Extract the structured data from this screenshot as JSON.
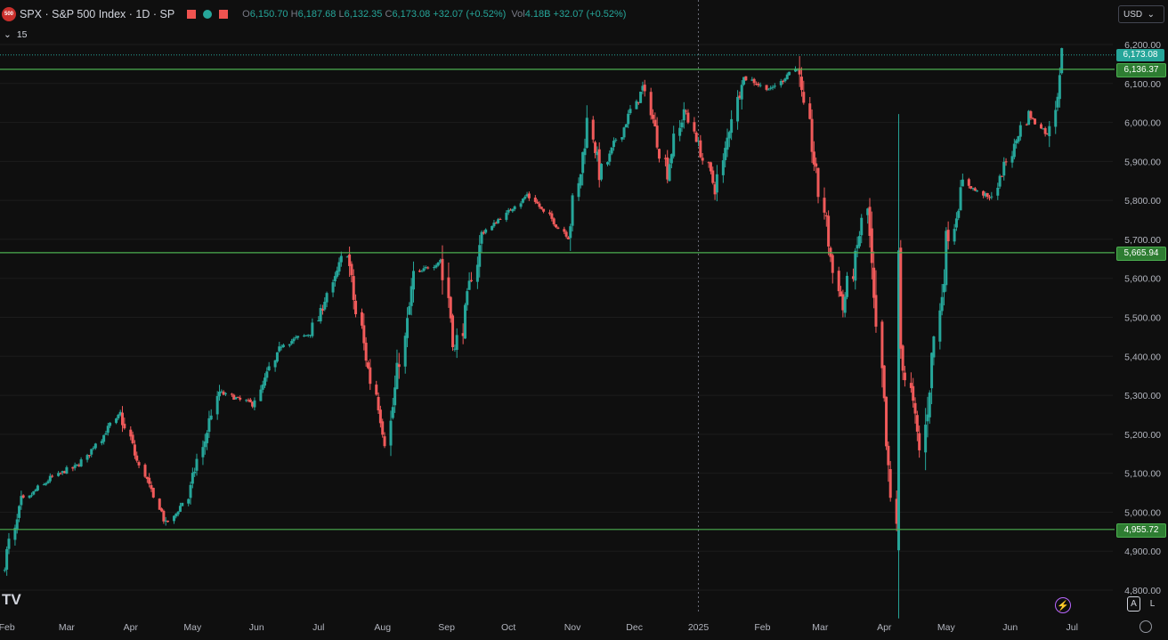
{
  "header": {
    "logo_text": "500",
    "symbol_title": "SPX · S&P 500 Index · 1D · SP",
    "open_label": "O",
    "open_value": "6,150.70",
    "high_label": "H",
    "high_value": "6,187.68",
    "low_label": "L",
    "low_value": "6,132.35",
    "close_label": "C",
    "close_value": "6,173.08",
    "change": "+32.07 (+0.52%)",
    "vol_label": "Vol",
    "vol_value": "4.18B",
    "vol_change": "+32.07 (+0.52%)",
    "flag_colors": [
      "#ef5350",
      "#26a69a",
      "#ef5350"
    ]
  },
  "subbar": {
    "toggle_icon": "chevron-down-icon",
    "count": "15"
  },
  "currency": "USD",
  "watermark": "TV",
  "buttons": {
    "auto": "A",
    "log": "L"
  },
  "colors": {
    "up": "#26a69a",
    "down": "#f05a5a",
    "level_line": "#4caf50",
    "level_badge": "#2e7d32",
    "last_price_badge": "#26a69a",
    "background": "#0f0f0f"
  },
  "chart_data": {
    "type": "candlestick",
    "ylim": [
      4800,
      6230
    ],
    "y_ticks": [
      4800,
      4900,
      5000,
      5100,
      5200,
      5300,
      5400,
      5500,
      5600,
      5700,
      5800,
      5900,
      6000,
      6100,
      6200
    ],
    "y_tick_labels": [
      "4,800.00",
      "4,900.00",
      "5,000.00",
      "5,100.00",
      "5,200.00",
      "5,300.00",
      "5,400.00",
      "5,500.00",
      "5,600.00",
      "5,700.00",
      "5,800.00",
      "5,900.00",
      "6,000.00",
      "6,100.00",
      "6,200.00"
    ],
    "x_labels": [
      "Feb",
      "Mar",
      "Apr",
      "May",
      "Jun",
      "Jul",
      "Aug",
      "Sep",
      "Oct",
      "Nov",
      "Dec",
      "2025",
      "Feb",
      "Mar",
      "Apr",
      "May",
      "Jun",
      "Jul"
    ],
    "last_price": 6173.08,
    "last_price_label": "6,173.08",
    "horizontal_levels": [
      {
        "value": 6136.37,
        "label": "6,136.37"
      },
      {
        "value": 5665.94,
        "label": "5,665.94"
      },
      {
        "value": 4955.72,
        "label": "4,955.72"
      }
    ],
    "approx_close_path": [
      [
        "2024-01-31",
        4845
      ],
      [
        "2024-02-09",
        5026
      ],
      [
        "2024-02-23",
        5088
      ],
      [
        "2024-03-08",
        5123
      ],
      [
        "2024-03-28",
        5254
      ],
      [
        "2024-04-04",
        5147
      ],
      [
        "2024-04-19",
        4967
      ],
      [
        "2024-04-30",
        5035
      ],
      [
        "2024-05-15",
        5308
      ],
      [
        "2024-05-31",
        5277
      ],
      [
        "2024-06-14",
        5431
      ],
      [
        "2024-06-28",
        5460
      ],
      [
        "2024-07-16",
        5667
      ],
      [
        "2024-07-24",
        5427
      ],
      [
        "2024-08-05",
        5186
      ],
      [
        "2024-08-19",
        5608
      ],
      [
        "2024-08-30",
        5648
      ],
      [
        "2024-09-06",
        5408
      ],
      [
        "2024-09-19",
        5713
      ],
      [
        "2024-10-11",
        5815
      ],
      [
        "2024-10-31",
        5705
      ],
      [
        "2024-11-11",
        6001
      ],
      [
        "2024-11-15",
        5870
      ],
      [
        "2024-12-06",
        6090
      ],
      [
        "2024-12-18",
        5872
      ],
      [
        "2024-12-26",
        6037
      ],
      [
        "2025-01-10",
        5827
      ],
      [
        "2025-01-23",
        6119
      ],
      [
        "2025-02-06",
        6083
      ],
      [
        "2025-02-19",
        6144
      ],
      [
        "2025-03-10",
        5614
      ],
      [
        "2025-03-13",
        5521
      ],
      [
        "2025-03-25",
        5776
      ],
      [
        "2025-04-04",
        5074
      ],
      [
        "2025-04-08",
        4982
      ],
      [
        "2025-04-09",
        5457
      ],
      [
        "2025-04-21",
        5158
      ],
      [
        "2025-05-02",
        5686
      ],
      [
        "2025-05-12",
        5844
      ],
      [
        "2025-05-23",
        5803
      ],
      [
        "2025-06-11",
        6022
      ],
      [
        "2025-06-20",
        5967
      ],
      [
        "2025-06-27",
        6173
      ]
    ]
  }
}
